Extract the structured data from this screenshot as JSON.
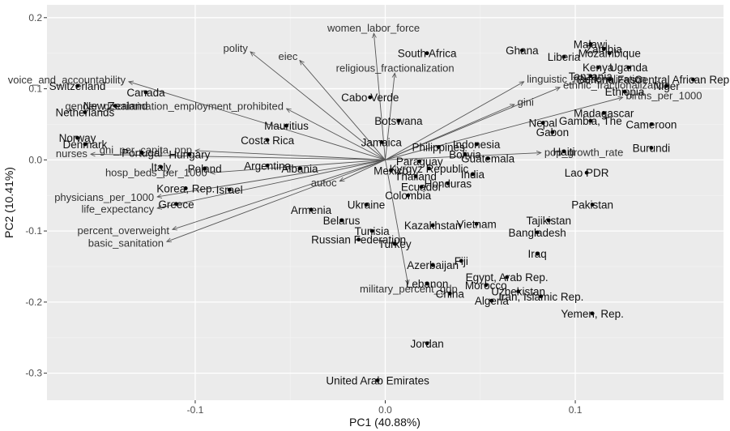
{
  "chart_data": {
    "type": "scatter",
    "subtype": "pca-biplot",
    "xlabel": "PC1 (40.88%)",
    "ylabel": "PC2 (10.41%)",
    "xlim": [
      -0.178,
      0.178
    ],
    "ylim": [
      -0.338,
      0.218
    ],
    "x_ticks": [
      -0.1,
      0.0,
      0.1
    ],
    "x_tick_labels": [
      "-0.1",
      "0.0",
      "0.1"
    ],
    "y_ticks": [
      -0.3,
      -0.2,
      -0.1,
      0.0,
      0.1,
      0.2
    ],
    "y_tick_labels": [
      "-0.3",
      "-0.2",
      "-0.1",
      "0.0",
      "0.1",
      "0.2"
    ],
    "grid": true,
    "background": "#ebebeb",
    "grid_major_color": "#ffffff",
    "grid_minor_color": "#f3f3f3",
    "vector_color": "#555555",
    "point_color": "#000000",
    "vector_origin": [
      0.0,
      0.0
    ],
    "points": [
      {
        "label": "Switzerland",
        "x": -0.162,
        "y": 0.104
      },
      {
        "label": "Canada",
        "x": -0.126,
        "y": 0.095
      },
      {
        "label": "New Zealand",
        "x": -0.142,
        "y": 0.076
      },
      {
        "label": "Netherlands",
        "x": -0.158,
        "y": 0.067
      },
      {
        "label": "Norway",
        "x": -0.162,
        "y": 0.031
      },
      {
        "label": "Denmark",
        "x": -0.158,
        "y": 0.022
      },
      {
        "label": "Italy",
        "x": -0.118,
        "y": -0.01
      },
      {
        "label": "Poland",
        "x": -0.095,
        "y": -0.012
      },
      {
        "label": "Hungary",
        "x": -0.103,
        "y": 0.008
      },
      {
        "label": "Portugal",
        "x": -0.128,
        "y": 0.01
      },
      {
        "label": "Korea, Rep.",
        "x": -0.105,
        "y": -0.04
      },
      {
        "label": "Israel",
        "x": -0.082,
        "y": -0.042
      },
      {
        "label": "Greece",
        "x": -0.11,
        "y": -0.062
      },
      {
        "label": "Argentina",
        "x": -0.062,
        "y": -0.008
      },
      {
        "label": "Albania",
        "x": -0.045,
        "y": -0.012
      },
      {
        "label": "Mauritius",
        "x": -0.052,
        "y": 0.048
      },
      {
        "label": "Costa Rica",
        "x": -0.062,
        "y": 0.028
      },
      {
        "label": "Jamaica",
        "x": -0.002,
        "y": 0.025
      },
      {
        "label": "Armenia",
        "x": -0.039,
        "y": -0.07
      },
      {
        "label": "Belarus",
        "x": -0.023,
        "y": -0.085
      },
      {
        "label": "Ukraine",
        "x": -0.01,
        "y": -0.063
      },
      {
        "label": "Russian Federation",
        "x": -0.014,
        "y": -0.112
      },
      {
        "label": "Tunisia",
        "x": -0.007,
        "y": -0.1
      },
      {
        "label": "Turkey",
        "x": 0.005,
        "y": -0.118
      },
      {
        "label": "Colombia",
        "x": 0.012,
        "y": -0.05
      },
      {
        "label": "Mexico",
        "x": 0.003,
        "y": -0.015
      },
      {
        "label": "Cabo Verde",
        "x": -0.008,
        "y": 0.088
      },
      {
        "label": "South Africa",
        "x": 0.022,
        "y": 0.15
      },
      {
        "label": "Botswana",
        "x": 0.007,
        "y": 0.055
      },
      {
        "label": "Kazakhstan",
        "x": 0.025,
        "y": -0.092
      },
      {
        "label": "Azerbaijan",
        "x": 0.025,
        "y": -0.148
      },
      {
        "label": "Thailand",
        "x": 0.016,
        "y": -0.023
      },
      {
        "label": "Ecuador",
        "x": 0.019,
        "y": -0.038
      },
      {
        "label": "Honduras",
        "x": 0.033,
        "y": -0.033
      },
      {
        "label": "Kyrgyz Republic",
        "x": 0.023,
        "y": -0.012
      },
      {
        "label": "Paraguay",
        "x": 0.018,
        "y": -0.002
      },
      {
        "label": "India",
        "x": 0.046,
        "y": -0.02
      },
      {
        "label": "Philippines",
        "x": 0.028,
        "y": 0.018
      },
      {
        "label": "Indonesia",
        "x": 0.048,
        "y": 0.022
      },
      {
        "label": "Guatemala",
        "x": 0.054,
        "y": 0.002
      },
      {
        "label": "Bolivia",
        "x": 0.042,
        "y": 0.008
      },
      {
        "label": "Vietnam",
        "x": 0.048,
        "y": -0.09
      },
      {
        "label": "Fiji",
        "x": 0.04,
        "y": -0.142
      },
      {
        "label": "Egypt, Arab Rep.",
        "x": 0.064,
        "y": -0.165
      },
      {
        "label": "Morocco",
        "x": 0.053,
        "y": -0.176
      },
      {
        "label": "Lebanon",
        "x": 0.022,
        "y": -0.174
      },
      {
        "label": "Uzbekistan",
        "x": 0.07,
        "y": -0.185
      },
      {
        "label": "Iran, Islamic Rep.",
        "x": 0.082,
        "y": -0.192
      },
      {
        "label": "China",
        "x": 0.034,
        "y": -0.188
      },
      {
        "label": "Algeria",
        "x": 0.056,
        "y": -0.198
      },
      {
        "label": "Jordan",
        "x": 0.022,
        "y": -0.258
      },
      {
        "label": "United Arab Emirates",
        "x": -0.004,
        "y": -0.31
      },
      {
        "label": "Iraq",
        "x": 0.08,
        "y": -0.132
      },
      {
        "label": "Tajikistan",
        "x": 0.086,
        "y": -0.085
      },
      {
        "label": "Bangladesh",
        "x": 0.08,
        "y": -0.102
      },
      {
        "label": "Pakistan",
        "x": 0.109,
        "y": -0.063
      },
      {
        "label": "Lao PDR",
        "x": 0.106,
        "y": -0.018
      },
      {
        "label": "Yemen, Rep.",
        "x": 0.109,
        "y": -0.216
      },
      {
        "label": "Ghana",
        "x": 0.072,
        "y": 0.154
      },
      {
        "label": "Nepal",
        "x": 0.083,
        "y": 0.052
      },
      {
        "label": "Gabon",
        "x": 0.088,
        "y": 0.039
      },
      {
        "label": "Haiti",
        "x": 0.094,
        "y": 0.012
      },
      {
        "label": "Malawi",
        "x": 0.108,
        "y": 0.163
      },
      {
        "label": "Liberia",
        "x": 0.094,
        "y": 0.145
      },
      {
        "label": "Mozambique",
        "x": 0.118,
        "y": 0.15
      },
      {
        "label": "Zambia",
        "x": 0.115,
        "y": 0.156
      },
      {
        "label": "Kenya",
        "x": 0.112,
        "y": 0.13
      },
      {
        "label": "Uganda",
        "x": 0.128,
        "y": 0.13
      },
      {
        "label": "Tanzania",
        "x": 0.108,
        "y": 0.118
      },
      {
        "label": "Burkina Faso",
        "x": 0.118,
        "y": 0.113
      },
      {
        "label": "Central African Republic",
        "x": 0.162,
        "y": 0.113
      },
      {
        "label": "Niger",
        "x": 0.148,
        "y": 0.104
      },
      {
        "label": "Ethiopia",
        "x": 0.126,
        "y": 0.096
      },
      {
        "label": "Madagascar",
        "x": 0.115,
        "y": 0.066
      },
      {
        "label": "Gambia, The",
        "x": 0.108,
        "y": 0.055
      },
      {
        "label": "Cameroon",
        "x": 0.14,
        "y": 0.05
      },
      {
        "label": "Burundi",
        "x": 0.14,
        "y": 0.017
      }
    ],
    "vectors": [
      {
        "label": "women_labor_force",
        "x": -0.006,
        "y": 0.178
      },
      {
        "label": "polity",
        "x": -0.071,
        "y": 0.152
      },
      {
        "label": "eiec",
        "x": -0.045,
        "y": 0.14
      },
      {
        "label": "religious_fractionalization",
        "x": 0.005,
        "y": 0.122
      },
      {
        "label": "voice_and_accountability",
        "x": -0.135,
        "y": 0.11
      },
      {
        "label": "ethnic_fractionalization",
        "x": 0.092,
        "y": 0.102
      },
      {
        "label": "linguistic_fractionalization",
        "x": 0.073,
        "y": 0.11
      },
      {
        "label": "births_per_1000",
        "x": 0.125,
        "y": 0.088
      },
      {
        "label": "gini",
        "x": 0.068,
        "y": 0.078
      },
      {
        "label": "gender_discrimination_employment_prohibited",
        "x": -0.052,
        "y": 0.072
      },
      {
        "label": "pop_growth_rate",
        "x": 0.082,
        "y": 0.01
      },
      {
        "label": "nurses",
        "x": -0.155,
        "y": 0.008
      },
      {
        "label": "gni_per_capita_ppp",
        "x": -0.1,
        "y": 0.013
      },
      {
        "label": "hosp_beds_per_1000",
        "x": -0.092,
        "y": -0.018
      },
      {
        "label": "physicians_per_1000",
        "x": -0.12,
        "y": -0.052
      },
      {
        "label": "life_expectancy",
        "x": -0.12,
        "y": -0.068
      },
      {
        "label": "percent_overweight",
        "x": -0.112,
        "y": -0.098
      },
      {
        "label": "basic_sanitation",
        "x": -0.115,
        "y": -0.115
      },
      {
        "label": "autoc",
        "x": -0.024,
        "y": -0.03
      },
      {
        "label": "military_percent_gdp",
        "x": 0.012,
        "y": -0.175
      }
    ]
  }
}
